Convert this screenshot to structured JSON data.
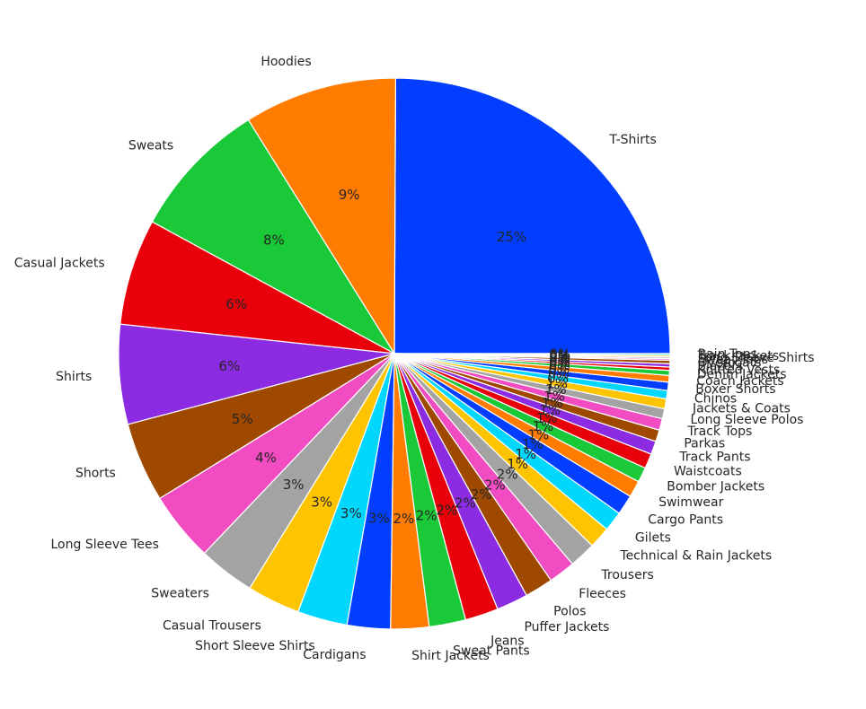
{
  "chart_data": {
    "type": "pie",
    "title": "",
    "start_angle_deg": 0,
    "direction": "counterclockwise",
    "autopct_format": "%.0f%%",
    "labels": [
      "T-Shirts",
      "Hoodies",
      "Sweats",
      "Casual Jackets",
      "Shirts",
      "Shorts",
      "Long Sleeve Tees",
      "Sweaters",
      "Casual Trousers",
      "Short Sleeve Shirts",
      "Cardigans",
      "Shirt Jackets",
      "Sweat Pants",
      "Jeans",
      "Puffer Jackets",
      "Polos",
      "Fleeces",
      "Trousers",
      "Technical & Rain Jackets",
      "Gilets",
      "Cargo Pants",
      "Swimwear",
      "Bomber Jackets",
      "Waistcoats",
      "Track Pants",
      "Parkas",
      "Track Tops",
      "Long Sleeve Polos",
      "Jackets & Coats",
      "Chinos",
      "Boxer Shorts",
      "Coach Jackets",
      "Denim Jackets",
      "Knitted Vests",
      "Blazers",
      "Overcoats",
      "Sweat Tops",
      "Long Sleeve Shirts",
      "Track Jackets",
      "Rain Tops"
    ],
    "values": [
      25.6,
      9.2,
      8.4,
      6.4,
      6.0,
      4.8,
      4.2,
      3.4,
      3.2,
      3.0,
      2.6,
      2.3,
      2.2,
      2.0,
      1.9,
      1.7,
      1.6,
      1.6,
      1.3,
      1.2,
      1.2,
      1.0,
      0.9,
      0.9,
      0.8,
      0.7,
      0.7,
      0.6,
      0.6,
      0.5,
      0.5,
      0.4,
      0.3,
      0.2,
      0.2,
      0.2,
      0.1,
      0.1,
      0.1,
      0.1
    ],
    "colors": [
      "#023eff",
      "#ff7c00",
      "#1ac938",
      "#e8000b",
      "#8b2be2",
      "#9f4800",
      "#f14cc1",
      "#a3a3a3",
      "#ffc400",
      "#00d7ff"
    ]
  }
}
